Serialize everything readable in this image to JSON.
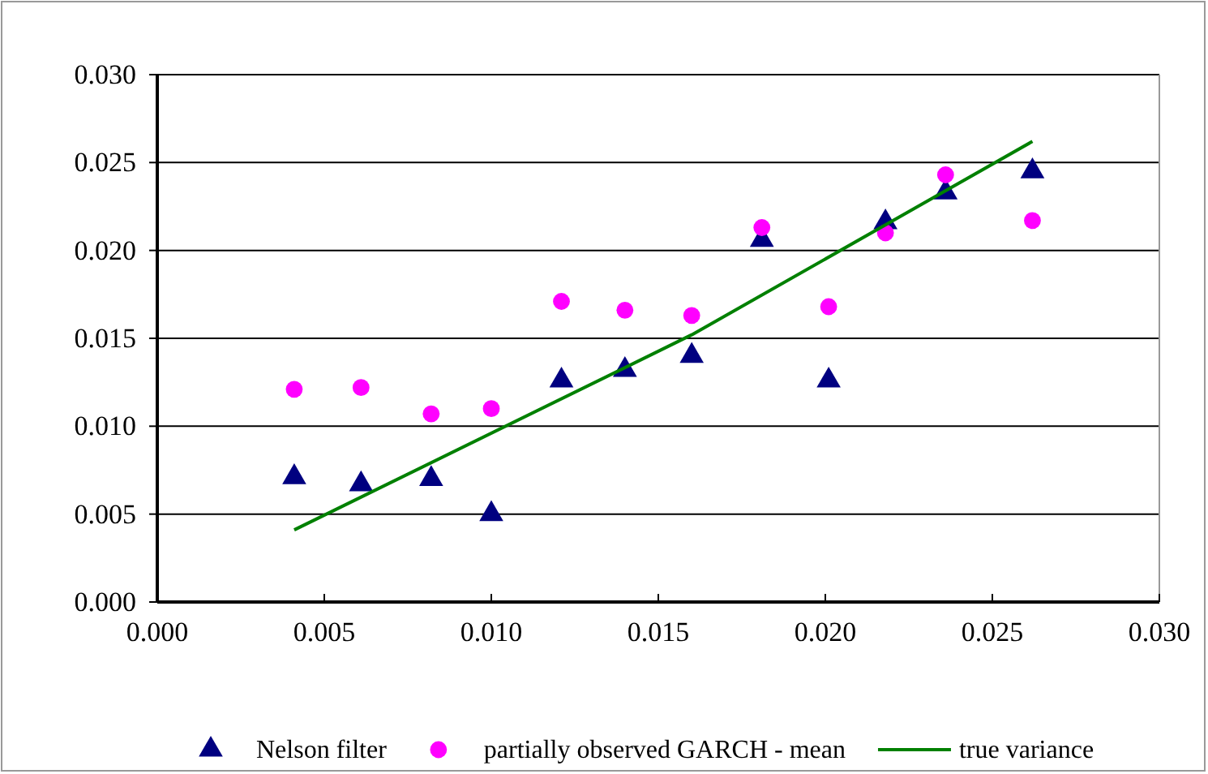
{
  "chart_data": {
    "type": "scatter",
    "xlim": [
      0,
      0.03
    ],
    "ylim": [
      0,
      0.03
    ],
    "xticks": [
      {
        "value": 0,
        "label": "0.000"
      },
      {
        "value": 0.005,
        "label": "0.005"
      },
      {
        "value": 0.01,
        "label": "0.010"
      },
      {
        "value": 0.015,
        "label": "0.015"
      },
      {
        "value": 0.02,
        "label": "0.020"
      },
      {
        "value": 0.025,
        "label": "0.025"
      },
      {
        "value": 0.03,
        "label": "0.030"
      }
    ],
    "yticks": [
      {
        "value": 0,
        "label": "0.000"
      },
      {
        "value": 0.005,
        "label": "0.005"
      },
      {
        "value": 0.01,
        "label": "0.010"
      },
      {
        "value": 0.015,
        "label": "0.015"
      },
      {
        "value": 0.02,
        "label": "0.020"
      },
      {
        "value": 0.025,
        "label": "0.025"
      },
      {
        "value": 0.03,
        "label": "0.030"
      }
    ],
    "grid": "y",
    "legend": "bottom",
    "series": [
      {
        "name": "Nelson filter",
        "marker": "triangle",
        "color": "#000080",
        "x": [
          0.0041,
          0.0061,
          0.0082,
          0.01,
          0.0121,
          0.014,
          0.016,
          0.0181,
          0.0201,
          0.0218,
          0.0236,
          0.0262
        ],
        "values": [
          0.0071,
          0.0067,
          0.007,
          0.005,
          0.0126,
          0.0132,
          0.014,
          0.0206,
          0.0126,
          0.0216,
          0.0233,
          0.0245
        ]
      },
      {
        "name": "partially observed GARCH - mean",
        "marker": "circle",
        "color": "#ff00ff",
        "x": [
          0.0041,
          0.0061,
          0.0082,
          0.01,
          0.0121,
          0.014,
          0.016,
          0.0181,
          0.0201,
          0.0218,
          0.0236,
          0.0262
        ],
        "values": [
          0.0121,
          0.0122,
          0.0107,
          0.011,
          0.0171,
          0.0166,
          0.0163,
          0.0213,
          0.0168,
          0.021,
          0.0243,
          0.0217
        ]
      },
      {
        "name": "true variance",
        "type": "line",
        "marker": "none",
        "color": "#008000",
        "x": [
          0.0041,
          0.016,
          0.0262
        ],
        "values": [
          0.0041,
          0.0152,
          0.0262
        ]
      }
    ]
  }
}
